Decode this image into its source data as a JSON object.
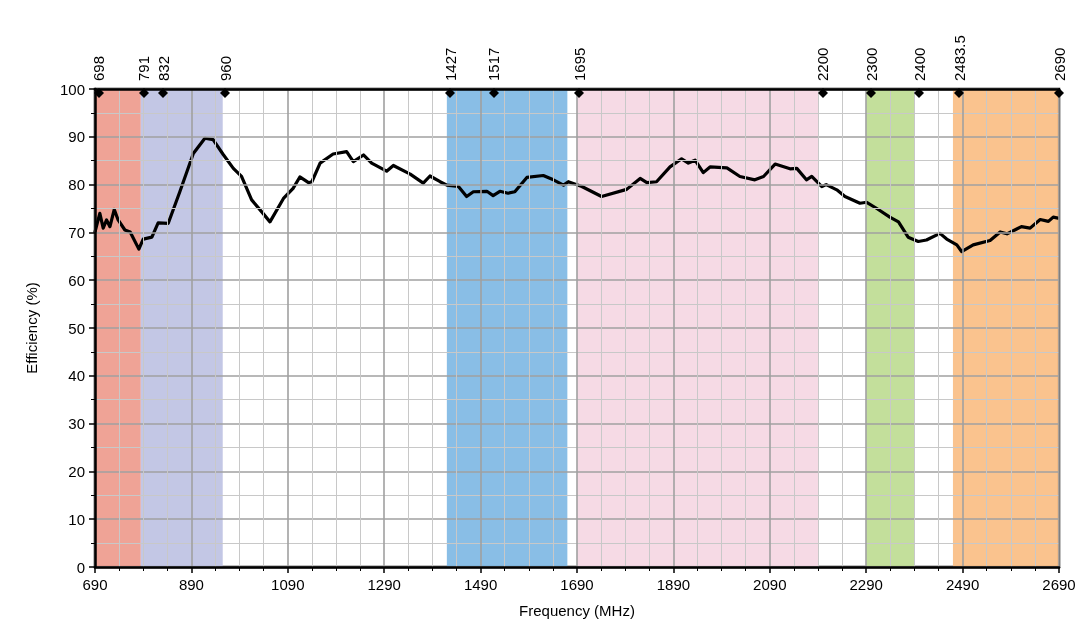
{
  "chart_data": {
    "type": "line",
    "xlabel": "Frequency (MHz)",
    "ylabel": "Efficiency (%)",
    "x": [
      690,
      700,
      707,
      714,
      721,
      730,
      738,
      752,
      763,
      781,
      790,
      808,
      821,
      842,
      866,
      894,
      918,
      935,
      956,
      977,
      994,
      1015,
      1036,
      1053,
      1081,
      1101,
      1115,
      1133,
      1140,
      1157,
      1184,
      1212,
      1226,
      1247,
      1264,
      1295,
      1309,
      1344,
      1371,
      1385,
      1406,
      1420,
      1444,
      1461,
      1475,
      1503,
      1516,
      1530,
      1547,
      1561,
      1586,
      1620,
      1641,
      1662,
      1672,
      1700,
      1741,
      1793,
      1821,
      1835,
      1855,
      1883,
      1907,
      1921,
      1935,
      1952,
      1966,
      2001,
      2028,
      2059,
      2077,
      2101,
      2132,
      2146,
      2166,
      2177,
      2198,
      2207,
      2229,
      2246,
      2277,
      2291,
      2312,
      2339,
      2357,
      2377,
      2398,
      2415,
      2443,
      2457,
      2478,
      2488,
      2512,
      2547,
      2568,
      2582,
      2612,
      2630,
      2651,
      2668,
      2678,
      2688
    ],
    "series": [
      {
        "color": "#000000",
        "values": [
          70.1,
          74.0,
          70.9,
          72.6,
          71.2,
          74.8,
          72.6,
          70.5,
          70.1,
          66.5,
          68.6,
          69.0,
          72.0,
          71.9,
          78.5,
          86.5,
          89.7,
          89.4,
          86.3,
          83.4,
          81.7,
          76.8,
          74.3,
          72.2,
          77.1,
          79.2,
          81.6,
          80.4,
          80.6,
          84.5,
          86.4,
          86.9,
          84.8,
          86.2,
          84.5,
          82.8,
          84.0,
          82.2,
          80.3,
          81.8,
          80.6,
          79.9,
          79.6,
          77.5,
          78.5,
          78.6,
          77.7,
          78.6,
          78.2,
          78.5,
          81.5,
          81.9,
          81.0,
          79.9,
          80.6,
          79.6,
          77.5,
          79.0,
          81.3,
          80.4,
          80.6,
          83.7,
          85.4,
          84.5,
          85.1,
          82.5,
          83.7,
          83.5,
          81.7,
          81.0,
          81.7,
          84.3,
          83.3,
          83.4,
          81.0,
          81.7,
          79.6,
          80.0,
          78.9,
          77.5,
          76.1,
          76.3,
          75.0,
          73.2,
          72.2,
          69.0,
          68.1,
          68.4,
          69.8,
          68.6,
          67.4,
          66.0,
          67.4,
          68.3,
          70.1,
          69.7,
          71.2,
          70.9,
          72.7,
          72.3,
          73.2,
          73.0
        ]
      }
    ],
    "xlim": [
      690,
      2690
    ],
    "xticks": [
      690,
      890,
      1090,
      1290,
      1490,
      1690,
      1890,
      2090,
      2290,
      2490,
      2690
    ],
    "ylim": [
      0,
      100
    ],
    "yticks": [
      0,
      10,
      20,
      30,
      40,
      50,
      60,
      70,
      80,
      90,
      100
    ],
    "x2lim": [
      690,
      2690
    ],
    "x2ticks": [
      698,
      791,
      832,
      960,
      1427,
      1517,
      1695,
      2200,
      2300,
      2400,
      2483.5,
      2690
    ],
    "bands": [
      {
        "axis": "x",
        "from": 690,
        "to": 785,
        "color": "#ec9384"
      },
      {
        "axis": "x",
        "from": 785,
        "to": 955,
        "color": "#b9bde0"
      },
      {
        "axis": "x",
        "from": 1420,
        "to": 1670,
        "color": "#74b3e2"
      },
      {
        "axis": "x",
        "from": 1690,
        "to": 2190,
        "color": "#f5d3e0"
      },
      {
        "axis": "x",
        "from": 2290,
        "to": 2390,
        "color": "#b8d98a"
      },
      {
        "axis": "x",
        "from": 2470,
        "to": 2690,
        "color": "#f9b97a"
      }
    ],
    "grid": true,
    "marker": "none",
    "line_style": "solid"
  }
}
